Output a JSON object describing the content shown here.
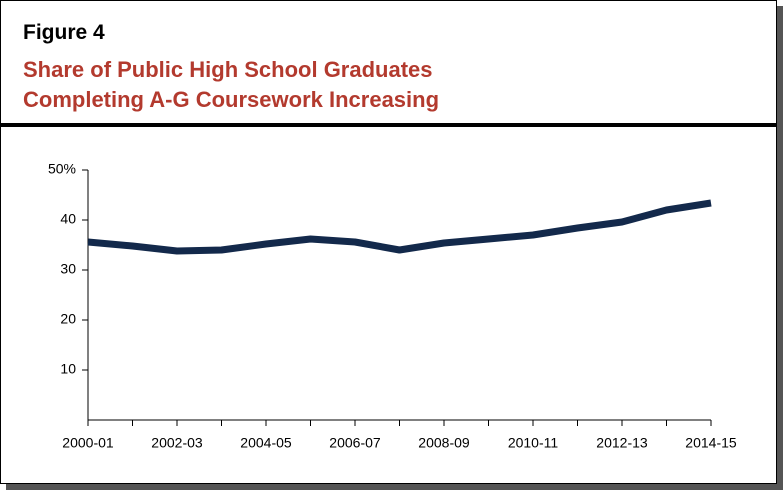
{
  "header": {
    "figure": "Figure 4",
    "title_lines": [
      "Share of Public High School Graduates",
      "Completing A-G Coursework Increasing"
    ]
  },
  "chart_data": {
    "type": "line",
    "categories": [
      "2000-01",
      null,
      "2002-03",
      null,
      "2004-05",
      null,
      "2006-07",
      null,
      "2008-09",
      null,
      "2010-11",
      null,
      "2012-13",
      null,
      "2014-15"
    ],
    "series": [
      {
        "color": "#13294b",
        "values": [
          35.6,
          34.8,
          33.8,
          34,
          35.2,
          36.2,
          35.6,
          34,
          35.4,
          36.2,
          37,
          38.4,
          39.6,
          42,
          43.4
        ]
      }
    ],
    "ylim": [
      0,
      50
    ],
    "yticks": [
      10,
      20,
      30,
      40,
      {
        "value": 50,
        "label": "50%"
      }
    ],
    "grid": false
  }
}
